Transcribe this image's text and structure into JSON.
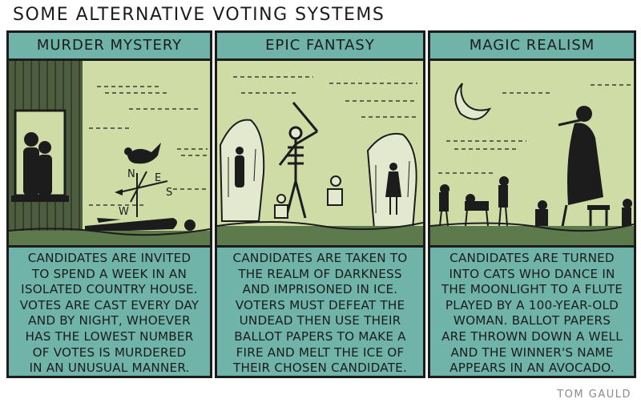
{
  "title": "SOME ALTERNATIVE VOTING SYSTEMS",
  "credit": "TOM GAULD",
  "panels": [
    {
      "heading": "MURDER MYSTERY",
      "caption": [
        "CANDIDATES ARE INVITED",
        "TO SPEND A WEEK IN AN",
        "ISOLATED COUNTRY HOUSE.",
        "VOTES ARE CAST EVERY DAY",
        "AND BY NIGHT, WHOEVER",
        "HAS THE LOWEST NUMBER",
        "OF VOTES IS MURDERED",
        "IN AN UNUSUAL MANNER."
      ],
      "compass": {
        "n": "N",
        "e": "E",
        "s": "S",
        "w": "W"
      }
    },
    {
      "heading": "EPIC FANTASY",
      "caption": [
        "CANDIDATES ARE TAKEN TO",
        "THE REALM OF DARKNESS",
        "AND IMPRISONED IN ICE.",
        "VOTERS MUST DEFEAT THE",
        "UNDEAD THEN USE THEIR",
        "BALLOT PAPERS TO MAKE A",
        "FIRE AND MELT THE ICE OF",
        "THEIR CHOSEN CANDIDATE."
      ]
    },
    {
      "heading": "MAGIC REALISM",
      "caption": [
        "CANDIDATES ARE TURNED",
        "INTO CATS WHO DANCE IN",
        "THE MOONLIGHT TO A FLUTE",
        "PLAYED BY A 100-YEAR-OLD",
        "WOMAN. BALLOT PAPERS",
        "ARE THROWN DOWN A WELL",
        "AND THE WINNER'S NAME",
        "APPEARS IN AN AVOCADO."
      ]
    }
  ],
  "colors": {
    "teal": "#6fb3a9",
    "sky": "#cfdca6",
    "ink": "#1c1c1c",
    "ground": "#5d7a4d"
  }
}
